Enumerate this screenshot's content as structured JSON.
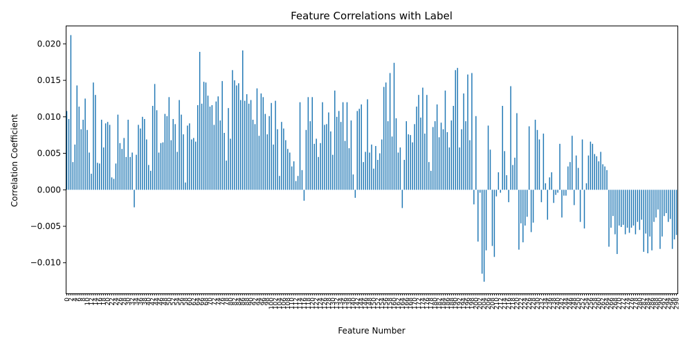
{
  "chart_data": {
    "type": "bar",
    "title": "Feature Correlations with Label",
    "xlabel": "Feature Number",
    "ylabel": "Correlation Coefficient",
    "bar_color": "#1f77b4",
    "ylim": [
      -0.0142,
      0.0225
    ],
    "yticks": [
      -0.01,
      -0.005,
      0.0,
      0.005,
      0.01,
      0.015,
      0.02
    ],
    "ytick_labels": [
      "−0.010",
      "−0.005",
      "0.000",
      "0.005",
      "0.010",
      "0.015",
      "0.020"
    ],
    "grid": false,
    "legend": null,
    "values": [
      0.0108,
      0.0097,
      0.0212,
      0.0038,
      0.0062,
      0.0143,
      0.0114,
      0.0083,
      0.0096,
      0.0125,
      0.0082,
      0.0051,
      0.0022,
      0.0147,
      0.013,
      0.0037,
      0.0036,
      0.0096,
      0.0058,
      0.0091,
      0.0093,
      0.0089,
      0.0017,
      0.0015,
      0.0036,
      0.0103,
      0.0064,
      0.0056,
      0.0071,
      0.0045,
      0.0096,
      0.0045,
      0.0051,
      -0.0024,
      0.0048,
      0.0089,
      0.0084,
      0.01,
      0.0097,
      0.0069,
      0.0034,
      0.0026,
      0.0115,
      0.0145,
      0.0109,
      0.0051,
      0.0064,
      0.0065,
      0.0104,
      0.0101,
      0.0127,
      0.0068,
      0.0097,
      0.009,
      0.0052,
      0.0123,
      0.0103,
      0.0076,
      0.001,
      0.0088,
      0.0091,
      0.0069,
      0.0071,
      0.0066,
      0.0116,
      0.0189,
      0.0118,
      0.0148,
      0.0147,
      0.0129,
      0.0114,
      0.0116,
      0.0089,
      0.0121,
      0.0128,
      0.0095,
      0.0149,
      0.0078,
      0.004,
      0.0112,
      0.007,
      0.0164,
      0.015,
      0.0143,
      0.0146,
      0.0123,
      0.0191,
      0.0122,
      0.0131,
      0.0118,
      0.0123,
      0.0096,
      0.009,
      0.0139,
      0.0074,
      0.0132,
      0.0127,
      0.0104,
      0.0076,
      0.0101,
      0.0119,
      0.0062,
      0.0122,
      0.0083,
      0.0019,
      0.0093,
      0.0084,
      0.0068,
      0.0056,
      0.0051,
      0.0032,
      0.0039,
      0.0012,
      0.0019,
      0.012,
      0.0027,
      -0.0015,
      0.0082,
      0.0127,
      0.0094,
      0.0127,
      0.0063,
      0.007,
      0.0045,
      0.0064,
      0.012,
      0.0089,
      0.009,
      0.0106,
      0.008,
      0.0048,
      0.0136,
      0.01,
      0.0108,
      0.0093,
      0.012,
      0.0067,
      0.012,
      0.0057,
      0.0095,
      0.0021,
      -0.0011,
      0.0108,
      0.0111,
      0.0117,
      0.0038,
      0.0052,
      0.0124,
      0.0051,
      0.0062,
      0.0029,
      0.006,
      0.0041,
      0.005,
      0.0069,
      0.0141,
      0.0147,
      0.0094,
      0.016,
      0.0073,
      0.0174,
      0.0098,
      0.0051,
      0.0058,
      -0.0025,
      0.0041,
      0.0094,
      0.0076,
      0.0075,
      0.0065,
      0.009,
      0.0114,
      0.013,
      0.0099,
      0.014,
      0.0077,
      0.013,
      0.0038,
      0.0026,
      0.0086,
      0.0094,
      0.0117,
      0.0072,
      0.0092,
      0.0083,
      0.0136,
      0.0079,
      0.0058,
      0.0095,
      0.0115,
      0.0164,
      0.0167,
      0.0058,
      0.0083,
      0.0132,
      0.0094,
      0.0158,
      0.0068,
      0.016,
      -0.002,
      0.0101,
      -0.0071,
      -0.0004,
      -0.0115,
      -0.0126,
      -0.0083,
      0.0088,
      0.0055,
      -0.0077,
      -0.0092,
      -0.0009,
      0.0024,
      -0.0004,
      0.0115,
      0.0053,
      0.002,
      -0.0017,
      0.0142,
      0.0034,
      0.0044,
      0.0105,
      -0.0082,
      -0.0046,
      -0.0072,
      -0.0049,
      -0.0037,
      0.0087,
      -0.0058,
      -0.0045,
      0.0096,
      0.0082,
      0.0069,
      -0.0017,
      0.0077,
      0.0009,
      -0.0041,
      0.0017,
      0.0024,
      -0.0018,
      -0.0007,
      -0.0004,
      0.0063,
      -0.0038,
      -0.0008,
      -0.0008,
      0.0032,
      0.0038,
      0.0074,
      -0.0021,
      0.0047,
      0.003,
      -0.0044,
      0.0069,
      -0.0053,
      0.0009,
      0.0047,
      0.0066,
      0.0063,
      0.0049,
      0.0046,
      0.0039,
      0.0052,
      0.0035,
      0.0032,
      0.0027,
      -0.0078,
      -0.0052,
      -0.0036,
      -0.0061,
      -0.0088,
      -0.0049,
      -0.0051,
      -0.0048,
      -0.0061,
      -0.0052,
      -0.0059,
      -0.0052,
      -0.0049,
      -0.0061,
      -0.0044,
      -0.0055,
      -0.0041,
      -0.0085,
      -0.006,
      -0.0087,
      -0.0064,
      -0.0083,
      -0.0044,
      -0.0038,
      -0.0027,
      -0.0081,
      -0.0064,
      -0.0036,
      -0.0032,
      -0.0044,
      -0.004,
      -0.0081,
      -0.0068,
      -0.0062
    ],
    "xtick_step": 2,
    "xtick_labels": [
      "0",
      "2",
      "4",
      "6",
      "8",
      "10",
      "12",
      "14",
      "16",
      "18",
      "20",
      "22",
      "24",
      "26",
      "28",
      "30",
      "32",
      "34",
      "36",
      "38",
      "40",
      "42",
      "44",
      "46",
      "48",
      "50",
      "52",
      "54",
      "56",
      "58",
      "60",
      "62",
      "64",
      "66",
      "68",
      "70",
      "72",
      "74",
      "76",
      "78",
      "80",
      "82",
      "84",
      "86",
      "88",
      "90",
      "92",
      "94",
      "96",
      "98",
      "100",
      "102",
      "104",
      "106",
      "108",
      "110",
      "112",
      "114",
      "116",
      "118",
      "120",
      "122",
      "124",
      "126",
      "128",
      "130",
      "132",
      "134",
      "136",
      "138",
      "140",
      "142",
      "144",
      "146",
      "148",
      "150",
      "152",
      "154",
      "156",
      "158",
      "160",
      "162",
      "164",
      "166",
      "168",
      "170",
      "172",
      "174",
      "176",
      "178",
      "180",
      "182",
      "184",
      "186",
      "188",
      "190",
      "192",
      "194",
      "196",
      "198",
      "200",
      "202",
      "204",
      "206",
      "208",
      "210",
      "212",
      "214",
      "216",
      "218",
      "220",
      "222",
      "224",
      "226",
      "228",
      "230",
      "232",
      "234",
      "236",
      "238",
      "240",
      "242",
      "244",
      "246",
      "248",
      "250",
      "252",
      "254",
      "256",
      "258",
      "260",
      "262",
      "264",
      "266",
      "268",
      "270",
      "272",
      "274",
      "276",
      "278",
      "280",
      "282",
      "284",
      "286",
      "288",
      "290",
      "292",
      "294",
      "296",
      "298"
    ]
  }
}
